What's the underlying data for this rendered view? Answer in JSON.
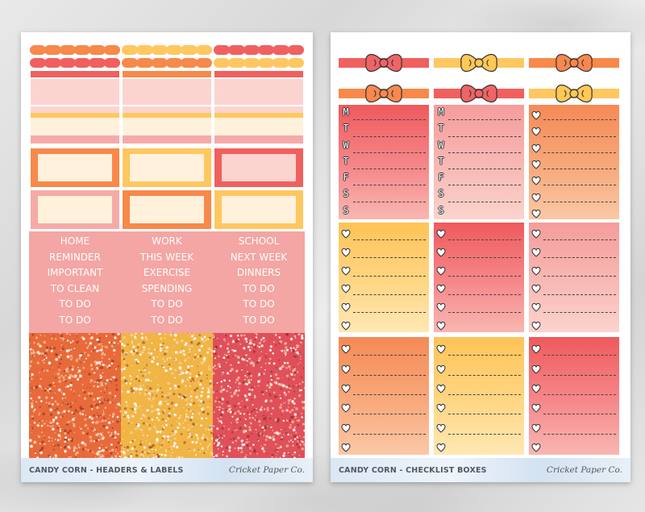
{
  "left_sheet": {
    "footer_title": "CANDY CORN - HEADERS & LABELS",
    "footer_brand": "Cricket Paper Co.",
    "label_columns": [
      [
        "HOME",
        "REMINDER",
        "IMPORTANT",
        "TO CLEAN",
        "TO DO",
        "TO DO"
      ],
      [
        "WORK",
        "THIS WEEK",
        "EXERCISE",
        "SPENDING",
        "TO DO",
        "TO DO"
      ],
      [
        "SCHOOL",
        "NEXT WEEK",
        "DINNERS",
        "TO DO",
        "TO DO",
        "TO DO"
      ]
    ],
    "glitter_colors": [
      "#e86a3a",
      "#f0b545",
      "#e0505a"
    ]
  },
  "right_sheet": {
    "footer_title": "CANDY CORN - CHECKLIST BOXES",
    "footer_brand": "Cricket Paper Co.",
    "weekday_letters": [
      "M",
      "T",
      "W",
      "T",
      "F",
      "S",
      "S"
    ],
    "bow_colors": [
      "#ef6466",
      "#ffc857",
      "#f7884f"
    ]
  },
  "palette": {
    "coral": "#f0605e",
    "orange": "#f7894a",
    "yellow": "#ffc760",
    "pink": "#f6aaa8",
    "light_pink": "#fbd4cf",
    "cream": "#fff1dc"
  }
}
